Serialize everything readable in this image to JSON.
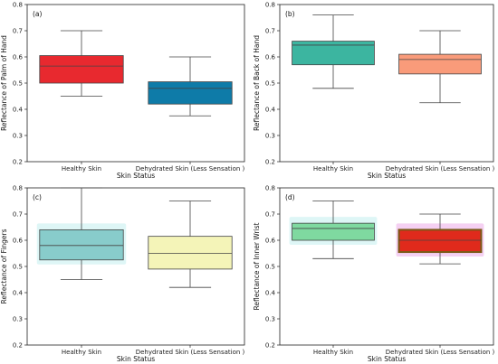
{
  "chart_data": [
    {
      "type": "box",
      "panel_label": "(a)",
      "ylabel": "Reflectance of Palm of Hand",
      "xlabel": "Skin Status",
      "ylim": [
        0.2,
        0.8
      ],
      "yticks": [
        "0.2",
        "0.3",
        "0.4",
        "0.5",
        "0.6",
        "0.7",
        "0.8"
      ],
      "categories": [
        "Healthy Skin",
        "Dehydrated Skin (Less Sensation )"
      ],
      "boxes": [
        {
          "min": 0.45,
          "q1": 0.5,
          "median": 0.565,
          "q3": 0.605,
          "max": 0.7,
          "color": "#e8292f",
          "glow": ""
        },
        {
          "min": 0.375,
          "q1": 0.42,
          "median": 0.48,
          "q3": 0.505,
          "max": 0.6,
          "color": "#0e7ba8",
          "glow": ""
        }
      ]
    },
    {
      "type": "box",
      "panel_label": "(b)",
      "ylabel": "Reflectance of Back of Hand",
      "xlabel": "Skin Status",
      "ylim": [
        0.2,
        0.8
      ],
      "yticks": [
        "0.2",
        "0.3",
        "0.4",
        "0.5",
        "0.6",
        "0.7",
        "0.8"
      ],
      "categories": [
        "Healthy Skin",
        "Dehydrated Skin (Less Sensation )"
      ],
      "boxes": [
        {
          "min": 0.48,
          "q1": 0.57,
          "median": 0.645,
          "q3": 0.66,
          "max": 0.76,
          "color": "#3cb5a0",
          "glow": ""
        },
        {
          "min": 0.425,
          "q1": 0.535,
          "median": 0.59,
          "q3": 0.61,
          "max": 0.7,
          "color": "#f99b7a",
          "glow": ""
        }
      ]
    },
    {
      "type": "box",
      "panel_label": "(c)",
      "ylabel": "Reflectance of Fingers",
      "xlabel": "Skin Status",
      "ylim": [
        0.2,
        0.8
      ],
      "yticks": [
        "0.2",
        "0.3",
        "0.4",
        "0.5",
        "0.6",
        "0.7",
        "0.8"
      ],
      "categories": [
        "Healthy Skin",
        "Dehydrated Skin (Less Sensation )"
      ],
      "boxes": [
        {
          "min": 0.45,
          "q1": 0.525,
          "median": 0.58,
          "q3": 0.64,
          "max": 0.8,
          "color": "#88cccb",
          "glow": "#d8f5f5"
        },
        {
          "min": 0.42,
          "q1": 0.49,
          "median": 0.55,
          "q3": 0.615,
          "max": 0.75,
          "color": "#f4f4b8",
          "glow": ""
        }
      ]
    },
    {
      "type": "box",
      "panel_label": "(d)",
      "ylabel": "Reflectance of Inner Wrist",
      "xlabel": "Skin Status",
      "ylim": [
        0.2,
        0.8
      ],
      "yticks": [
        "0.2",
        "0.3",
        "0.4",
        "0.5",
        "0.6",
        "0.7",
        "0.8"
      ],
      "categories": [
        "Healthy Skin",
        "Dehydrated Skin (Less Sensation )"
      ],
      "boxes": [
        {
          "min": 0.53,
          "q1": 0.6,
          "median": 0.645,
          "q3": 0.665,
          "max": 0.75,
          "color": "#7fd9a0",
          "glow": "#d8f5f5"
        },
        {
          "min": 0.51,
          "q1": 0.555,
          "median": 0.6,
          "q3": 0.64,
          "max": 0.7,
          "color": "#e02a1c",
          "glow": "#f3c8f0",
          "edge_color": "#7a5a18"
        }
      ]
    }
  ]
}
